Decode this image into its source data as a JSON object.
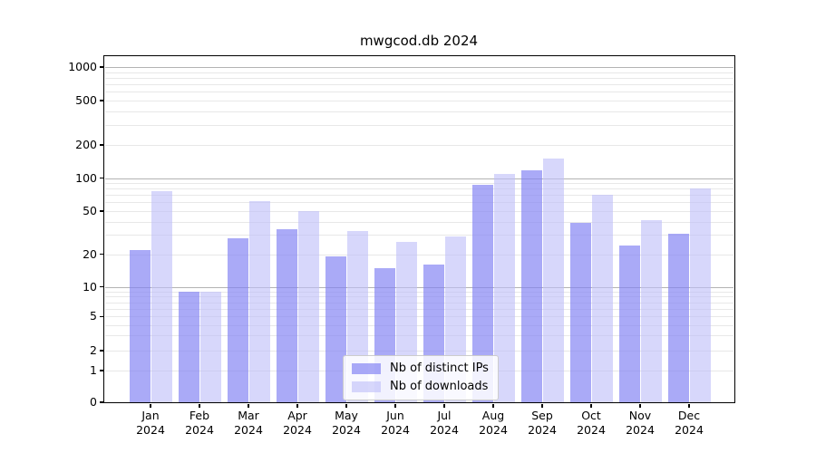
{
  "title": "mwgcod.db 2024",
  "chart_data": {
    "type": "bar",
    "title": "mwgcod.db 2024",
    "categories": [
      "Jan",
      "Feb",
      "Mar",
      "Apr",
      "May",
      "Jun",
      "Jul",
      "Aug",
      "Sep",
      "Oct",
      "Nov",
      "Dec"
    ],
    "year": "2024",
    "series": [
      {
        "name": "Nb of distinct IPs",
        "color": "rgba(130,130,243,0.68)",
        "values": [
          22,
          9,
          28,
          34,
          19,
          15,
          16,
          87,
          118,
          39,
          24,
          31
        ]
      },
      {
        "name": "Nb of downloads",
        "color": "rgba(190,190,248,0.62)",
        "values": [
          76,
          9,
          62,
          50,
          33,
          26,
          29,
          110,
          150,
          70,
          41,
          80
        ]
      }
    ],
    "yticks": [
      0,
      1,
      2,
      5,
      10,
      20,
      50,
      100,
      200,
      500,
      1000
    ],
    "ylim": [
      0,
      1000
    ],
    "yscale": "symlog",
    "grid": true,
    "legend_position": "lower center inside",
    "xlabel": "",
    "ylabel": ""
  }
}
